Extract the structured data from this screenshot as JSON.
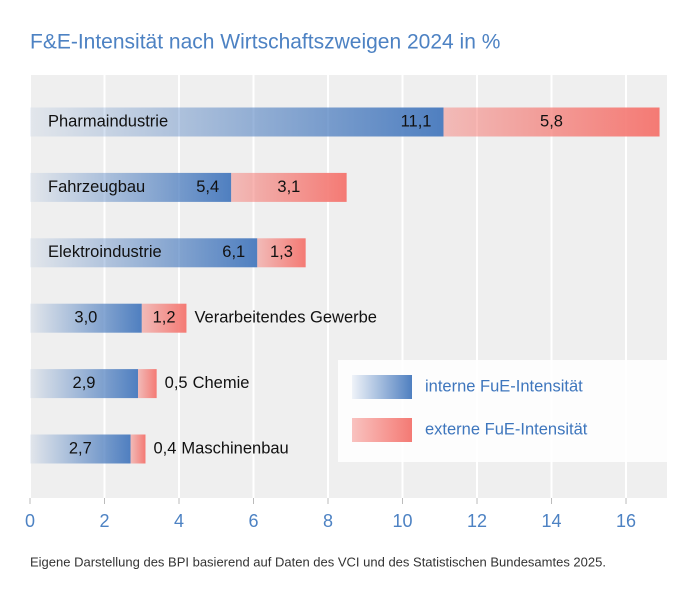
{
  "chart_data": {
    "type": "stacked-bar-horizontal",
    "title": "F&E-Intensität nach Wirtschaftszweigen 2024 in %",
    "source": "Eigene Darstellung des BPI basierend auf Daten des VCI und des Statistischen Bundesamtes 2025.",
    "categories": [
      "Pharmaindustrie",
      "Fahrzeugbau",
      "Elektroindustrie",
      "Verarbeitendes Gewerbe",
      "Chemie",
      "Maschinenbau"
    ],
    "series": [
      {
        "name": "interne FuE-Intensität",
        "color": "#4f7fc0",
        "values": [
          11.1,
          5.4,
          6.1,
          3.0,
          2.9,
          2.7
        ],
        "value_labels": [
          "11,1",
          "5,4",
          "6,1",
          "3,0",
          "2,9",
          "2,7"
        ]
      },
      {
        "name": "externe FuE-Intensität",
        "color": "#f47a74",
        "values": [
          5.8,
          3.1,
          1.3,
          1.2,
          0.5,
          0.4
        ],
        "value_labels": [
          "5,8",
          "3,1",
          "1,3",
          "1,2",
          "0,5",
          "0,4"
        ]
      }
    ],
    "xlim": [
      0,
      17.1
    ],
    "xticks": [
      0,
      2,
      4,
      6,
      8,
      10,
      12,
      14,
      16
    ],
    "grid": true,
    "legend": "lower right"
  }
}
